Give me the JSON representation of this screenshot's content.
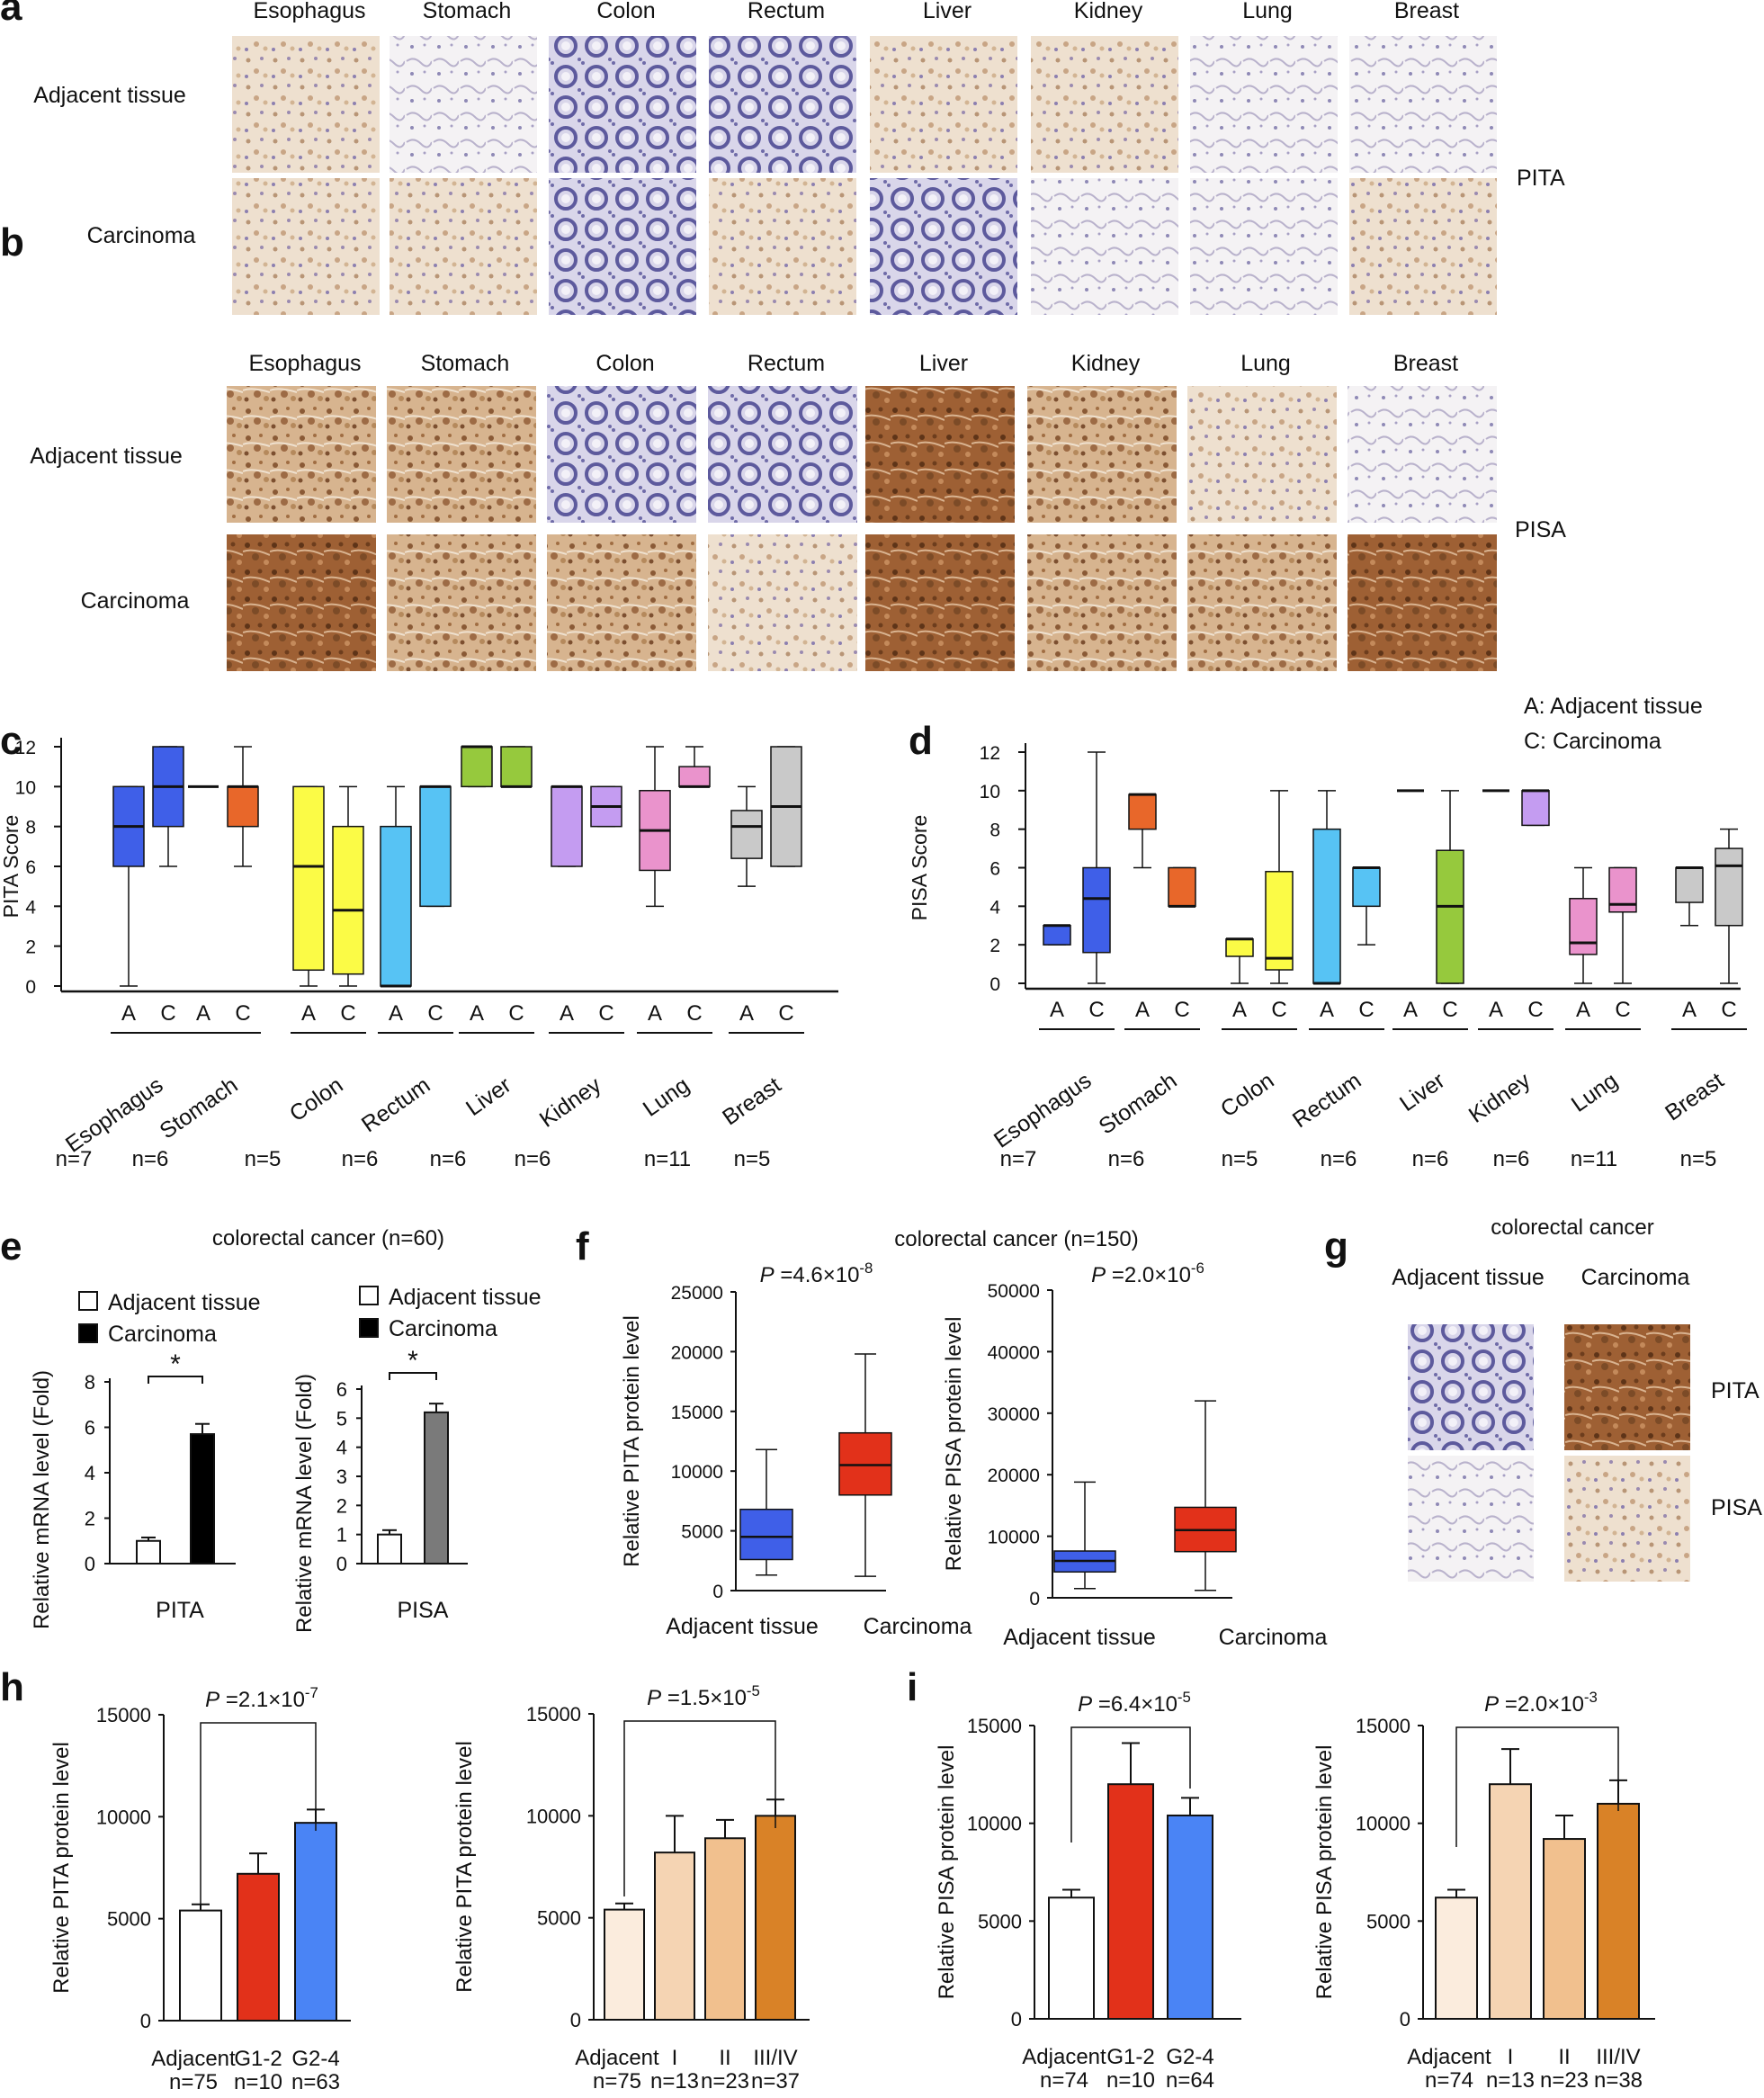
{
  "panel_letters": [
    "a",
    "b",
    "c",
    "d",
    "e",
    "f",
    "g",
    "h",
    "i"
  ],
  "tissues": [
    "Esophagus",
    "Stomach",
    "Colon",
    "Rectum",
    "Liver",
    "Kidney",
    "Lung",
    "Breast"
  ],
  "row_labels": [
    "Adjacent tissue",
    "Carcinoma"
  ],
  "panel_a_marker": "PITA",
  "panel_b_marker": "PISA",
  "ac_legend": [
    "A: Adjacent tissue",
    "C: Carcinoma"
  ],
  "ac_letters": [
    "A",
    "C"
  ],
  "tissue_counts": [
    "n=7",
    "n=6",
    "n=5",
    "n=6",
    "n=6",
    "n=6",
    "n=11",
    "n=5"
  ],
  "panel_e_title": "colorectal cancer (n=60)",
  "panel_f_title": "colorectal cancer (n=150)",
  "panel_g": {
    "title": "colorectal cancer",
    "col_labels": [
      "Adjacent tissue",
      "Carcinoma"
    ],
    "row_labels": [
      "PITA",
      "PISA"
    ]
  },
  "p_values": {
    "f_pita": [
      "P",
      "=4.6×10",
      "-8"
    ],
    "f_pisa": [
      "P",
      "=2.0×10",
      "-6"
    ],
    "h_grade": [
      "P",
      "=2.1×10",
      "-7"
    ],
    "h_stage": [
      "P",
      "=1.5×10",
      "-5"
    ],
    "i_grade": [
      "P",
      "=6.4×10",
      "-5"
    ],
    "i_stage": [
      "P",
      "=2.0×10",
      "-3"
    ]
  },
  "colors": {
    "blue": "#3f5fe8",
    "orange": "#e8672a",
    "yellow": "#fbfb46",
    "skyblue": "#57c3f4",
    "green": "#96c93d",
    "lavender": "#c49cf1",
    "pink": "#ea93cc",
    "gray": "#c9c9c9",
    "red": "#e2311a",
    "barblue": "#4a84f5",
    "tan1": "#fbecdd",
    "tan2": "#f5d4b3",
    "tan3": "#f1c08e",
    "tan4": "#d98227",
    "white": "#ffffff",
    "black": "#000000",
    "darkgray": "#7a7a7a"
  },
  "chart_data": [
    {
      "panel": "c",
      "type": "box",
      "ylabel": "PITA Score",
      "ylim": [
        0,
        12
      ],
      "yticks": [
        0,
        2,
        4,
        6,
        8,
        10,
        12
      ],
      "groups": [
        "Esophagus",
        "Stomach",
        "Colon",
        "Rectum",
        "Liver",
        "Kidney",
        "Lung",
        "Breast"
      ],
      "counts": [
        "n=7",
        "n=6",
        "n=5",
        "n=6",
        "n=6",
        "n=6",
        "n=11",
        "n=5"
      ],
      "boxes": [
        {
          "group": "Esophagus",
          "cond": "A",
          "min": 0,
          "q1": 6,
          "median": 8,
          "q3": 10,
          "max": 10,
          "color": "#3f5fe8"
        },
        {
          "group": "Esophagus",
          "cond": "C",
          "min": 6,
          "q1": 8,
          "median": 10,
          "q3": 12,
          "max": 12,
          "color": "#3f5fe8"
        },
        {
          "group": "Stomach",
          "cond": "A",
          "min": 10,
          "q1": 10,
          "median": 10,
          "q3": 10,
          "max": 10,
          "color": "#e8672a"
        },
        {
          "group": "Stomach",
          "cond": "C",
          "min": 6,
          "q1": 8,
          "median": 10,
          "q3": 10,
          "max": 12,
          "color": "#e8672a"
        },
        {
          "group": "Colon",
          "cond": "A",
          "min": 0,
          "q1": 0.8,
          "median": 6,
          "q3": 10,
          "max": 10,
          "color": "#fbfb46"
        },
        {
          "group": "Colon",
          "cond": "C",
          "min": 0,
          "q1": 0.6,
          "median": 3.8,
          "q3": 8,
          "max": 10,
          "color": "#fbfb46"
        },
        {
          "group": "Rectum",
          "cond": "A",
          "min": 0,
          "q1": 0,
          "median": 0,
          "q3": 8,
          "max": 10,
          "color": "#57c3f4"
        },
        {
          "group": "Rectum",
          "cond": "C",
          "min": 4,
          "q1": 4,
          "median": 10,
          "q3": 10,
          "max": 10,
          "color": "#57c3f4"
        },
        {
          "group": "Liver",
          "cond": "A",
          "min": 10,
          "q1": 10,
          "median": 12,
          "q3": 12,
          "max": 12,
          "color": "#96c93d"
        },
        {
          "group": "Liver",
          "cond": "C",
          "min": 10,
          "q1": 10,
          "median": 10,
          "q3": 12,
          "max": 12,
          "color": "#96c93d"
        },
        {
          "group": "Kidney",
          "cond": "A",
          "min": 6,
          "q1": 6,
          "median": 10,
          "q3": 10,
          "max": 10,
          "color": "#c49cf1"
        },
        {
          "group": "Kidney",
          "cond": "C",
          "min": 8,
          "q1": 8,
          "median": 9,
          "q3": 10,
          "max": 10,
          "color": "#c49cf1"
        },
        {
          "group": "Lung",
          "cond": "A",
          "min": 4,
          "q1": 5.8,
          "median": 7.8,
          "q3": 9.8,
          "max": 12,
          "color": "#ea93cc"
        },
        {
          "group": "Lung",
          "cond": "C",
          "min": 10,
          "q1": 10,
          "median": 10,
          "q3": 11,
          "max": 12,
          "color": "#ea93cc"
        },
        {
          "group": "Breast",
          "cond": "A",
          "min": 5,
          "q1": 6.4,
          "median": 8,
          "q3": 8.8,
          "max": 10,
          "color": "#c9c9c9"
        },
        {
          "group": "Breast",
          "cond": "C",
          "min": 6,
          "q1": 6,
          "median": 9,
          "q3": 12,
          "max": 12,
          "color": "#c9c9c9"
        }
      ]
    },
    {
      "panel": "d",
      "type": "box",
      "ylabel": "PISA Score",
      "ylim": [
        0,
        12
      ],
      "yticks": [
        0,
        2,
        4,
        6,
        8,
        10,
        12
      ],
      "groups": [
        "Esophagus",
        "Stomach",
        "Colon",
        "Rectum",
        "Liver",
        "Kidney",
        "Lung",
        "Breast"
      ],
      "counts": [
        "n=7",
        "n=6",
        "n=5",
        "n=6",
        "n=6",
        "n=6",
        "n=11",
        "n=5"
      ],
      "boxes": [
        {
          "group": "Esophagus",
          "cond": "A",
          "min": 2,
          "q1": 2,
          "median": 3,
          "q3": 3,
          "max": 3,
          "color": "#3f5fe8"
        },
        {
          "group": "Esophagus",
          "cond": "C",
          "min": 0,
          "q1": 1.6,
          "median": 4.4,
          "q3": 6,
          "max": 12,
          "color": "#3f5fe8"
        },
        {
          "group": "Stomach",
          "cond": "A",
          "min": 6,
          "q1": 8,
          "median": 9.8,
          "q3": 9.8,
          "max": 9.8,
          "color": "#e8672a"
        },
        {
          "group": "Stomach",
          "cond": "C",
          "min": 4,
          "q1": 4,
          "median": 4,
          "q3": 6,
          "max": 6,
          "color": "#e8672a"
        },
        {
          "group": "Colon",
          "cond": "A",
          "min": 0,
          "q1": 1.4,
          "median": 2.3,
          "q3": 2.3,
          "max": 2.3,
          "color": "#fbfb46"
        },
        {
          "group": "Colon",
          "cond": "C",
          "min": 0,
          "q1": 0.7,
          "median": 1.3,
          "q3": 5.8,
          "max": 10,
          "color": "#fbfb46"
        },
        {
          "group": "Rectum",
          "cond": "A",
          "min": 0,
          "q1": 0,
          "median": 0,
          "q3": 8,
          "max": 10,
          "color": "#57c3f4"
        },
        {
          "group": "Rectum",
          "cond": "C",
          "min": 2,
          "q1": 4,
          "median": 6,
          "q3": 6,
          "max": 6,
          "color": "#57c3f4"
        },
        {
          "group": "Liver",
          "cond": "A",
          "min": 10,
          "q1": 10,
          "median": 10,
          "q3": 10,
          "max": 10,
          "color": "#96c93d"
        },
        {
          "group": "Liver",
          "cond": "C",
          "min": 0,
          "q1": 0,
          "median": 4,
          "q3": 6.9,
          "max": 10,
          "color": "#96c93d"
        },
        {
          "group": "Kidney",
          "cond": "A",
          "min": 10,
          "q1": 10,
          "median": 10,
          "q3": 10,
          "max": 10,
          "color": "#c49cf1"
        },
        {
          "group": "Kidney",
          "cond": "C",
          "min": 8.2,
          "q1": 8.2,
          "median": 10,
          "q3": 10,
          "max": 10,
          "color": "#c49cf1"
        },
        {
          "group": "Lung",
          "cond": "A",
          "min": 0,
          "q1": 1.5,
          "median": 2.1,
          "q3": 4.4,
          "max": 6,
          "color": "#ea93cc"
        },
        {
          "group": "Lung",
          "cond": "C",
          "min": 0,
          "q1": 3.7,
          "median": 4.1,
          "q3": 6,
          "max": 6,
          "color": "#ea93cc"
        },
        {
          "group": "Breast",
          "cond": "A",
          "min": 3,
          "q1": 4.2,
          "median": 6,
          "q3": 6,
          "max": 6,
          "color": "#c9c9c9"
        },
        {
          "group": "Breast",
          "cond": "C",
          "min": 0,
          "q1": 3,
          "median": 6.1,
          "q3": 7,
          "max": 8,
          "color": "#c9c9c9"
        }
      ]
    },
    {
      "panel": "e",
      "type": "bar",
      "ylabel": "Relative  mRNA level (Fold)",
      "xlabel": "PITA",
      "ylim": [
        0,
        8
      ],
      "yticks": [
        0,
        2,
        4,
        6,
        8
      ],
      "legend": [
        "Adjacent tissue",
        "Carcinoma"
      ],
      "significance": "*",
      "bars": [
        {
          "name": "Adjacent tissue",
          "value": 1.0,
          "error": 0.15,
          "fill": "#ffffff"
        },
        {
          "name": "Carcinoma",
          "value": 5.7,
          "error": 0.45,
          "fill": "#000000"
        }
      ]
    },
    {
      "panel": "e",
      "type": "bar",
      "ylabel": "Relative  mRNA level (Fold)",
      "xlabel": "PISA",
      "ylim": [
        0,
        6
      ],
      "yticks": [
        0,
        1,
        2,
        3,
        4,
        5,
        6
      ],
      "legend": [
        "Adjacent tissue",
        "Carcinoma"
      ],
      "significance": "*",
      "bars": [
        {
          "name": "Adjacent tissue",
          "value": 1.0,
          "error": 0.15,
          "fill": "#ffffff"
        },
        {
          "name": "Carcinoma",
          "value": 5.2,
          "error": 0.3,
          "fill": "#7a7a7a"
        }
      ]
    },
    {
      "panel": "f",
      "type": "box",
      "ylabel": "Relative PITA  protein  level",
      "ylim": [
        0,
        25000
      ],
      "yticks": [
        0,
        5000,
        10000,
        15000,
        20000,
        25000
      ],
      "categories": [
        "Adjacent tissue",
        "Carcinoma"
      ],
      "boxes": [
        {
          "min": 1300,
          "q1": 2600,
          "median": 4500,
          "q3": 6800,
          "max": 11800,
          "color": "#3f5fe8"
        },
        {
          "min": 1200,
          "q1": 8000,
          "median": 10500,
          "q3": 13200,
          "max": 19800,
          "color": "#e2311a"
        }
      ]
    },
    {
      "panel": "f",
      "type": "box",
      "ylabel": "Relative PISA  protein  level",
      "ylim": [
        0,
        50000
      ],
      "yticks": [
        0,
        10000,
        20000,
        30000,
        40000,
        50000
      ],
      "categories": [
        "Adjacent tissue",
        "Carcinoma"
      ],
      "boxes": [
        {
          "min": 1500,
          "q1": 4200,
          "median": 6000,
          "q3": 7600,
          "max": 18800,
          "color": "#3f5fe8"
        },
        {
          "min": 1200,
          "q1": 7500,
          "median": 11000,
          "q3": 14700,
          "max": 32000,
          "color": "#e2311a"
        }
      ]
    },
    {
      "panel": "h",
      "type": "bar",
      "ylabel": "Relative PITA  protein  level",
      "ylim": [
        0,
        15000
      ],
      "yticks": [
        0,
        5000,
        10000,
        15000
      ],
      "categories": [
        "Adjacent",
        "G1-2",
        "G2-4"
      ],
      "counts": [
        "n=75",
        "n=10",
        "n=63"
      ],
      "values": [
        5400,
        7200,
        9700
      ],
      "errors": [
        300,
        1000,
        650
      ],
      "fills": [
        "#ffffff",
        "#e2311a",
        "#4a84f5"
      ]
    },
    {
      "panel": "h",
      "type": "bar",
      "ylabel": "Relative PITA  protein  level",
      "ylim": [
        0,
        15000
      ],
      "yticks": [
        0,
        5000,
        10000,
        15000
      ],
      "categories": [
        "Adjacent",
        "I",
        "II",
        "III/IV"
      ],
      "counts": [
        "n=75",
        "n=13",
        "n=23",
        "n=37"
      ],
      "values": [
        5400,
        8200,
        8900,
        10000
      ],
      "errors": [
        300,
        1800,
        900,
        800
      ],
      "fills": [
        "#fbecdd",
        "#f5d4b3",
        "#f1c08e",
        "#d98227"
      ]
    },
    {
      "panel": "i",
      "type": "bar",
      "ylabel": "Relative PISA  protein  level",
      "ylim": [
        0,
        15000
      ],
      "yticks": [
        0,
        5000,
        10000,
        15000
      ],
      "categories": [
        "Adjacent",
        "G1-2",
        "G2-4"
      ],
      "counts": [
        "n=74",
        "n=10",
        "n=64"
      ],
      "values": [
        6200,
        12000,
        10400
      ],
      "errors": [
        400,
        2100,
        900
      ],
      "fills": [
        "#ffffff",
        "#e2311a",
        "#4a84f5"
      ]
    },
    {
      "panel": "i",
      "type": "bar",
      "ylabel": "Relative PISA  protein  level",
      "ylim": [
        0,
        15000
      ],
      "yticks": [
        0,
        5000,
        10000,
        15000
      ],
      "categories": [
        "Adjacent",
        "I",
        "II",
        "III/IV"
      ],
      "counts": [
        "n=74",
        "n=13",
        "n=23",
        "n=38"
      ],
      "values": [
        6200,
        12000,
        9200,
        11000
      ],
      "errors": [
        400,
        1800,
        1200,
        1200
      ],
      "fills": [
        "#fbecdd",
        "#f5d4b3",
        "#f1c08e",
        "#d98227"
      ]
    }
  ]
}
